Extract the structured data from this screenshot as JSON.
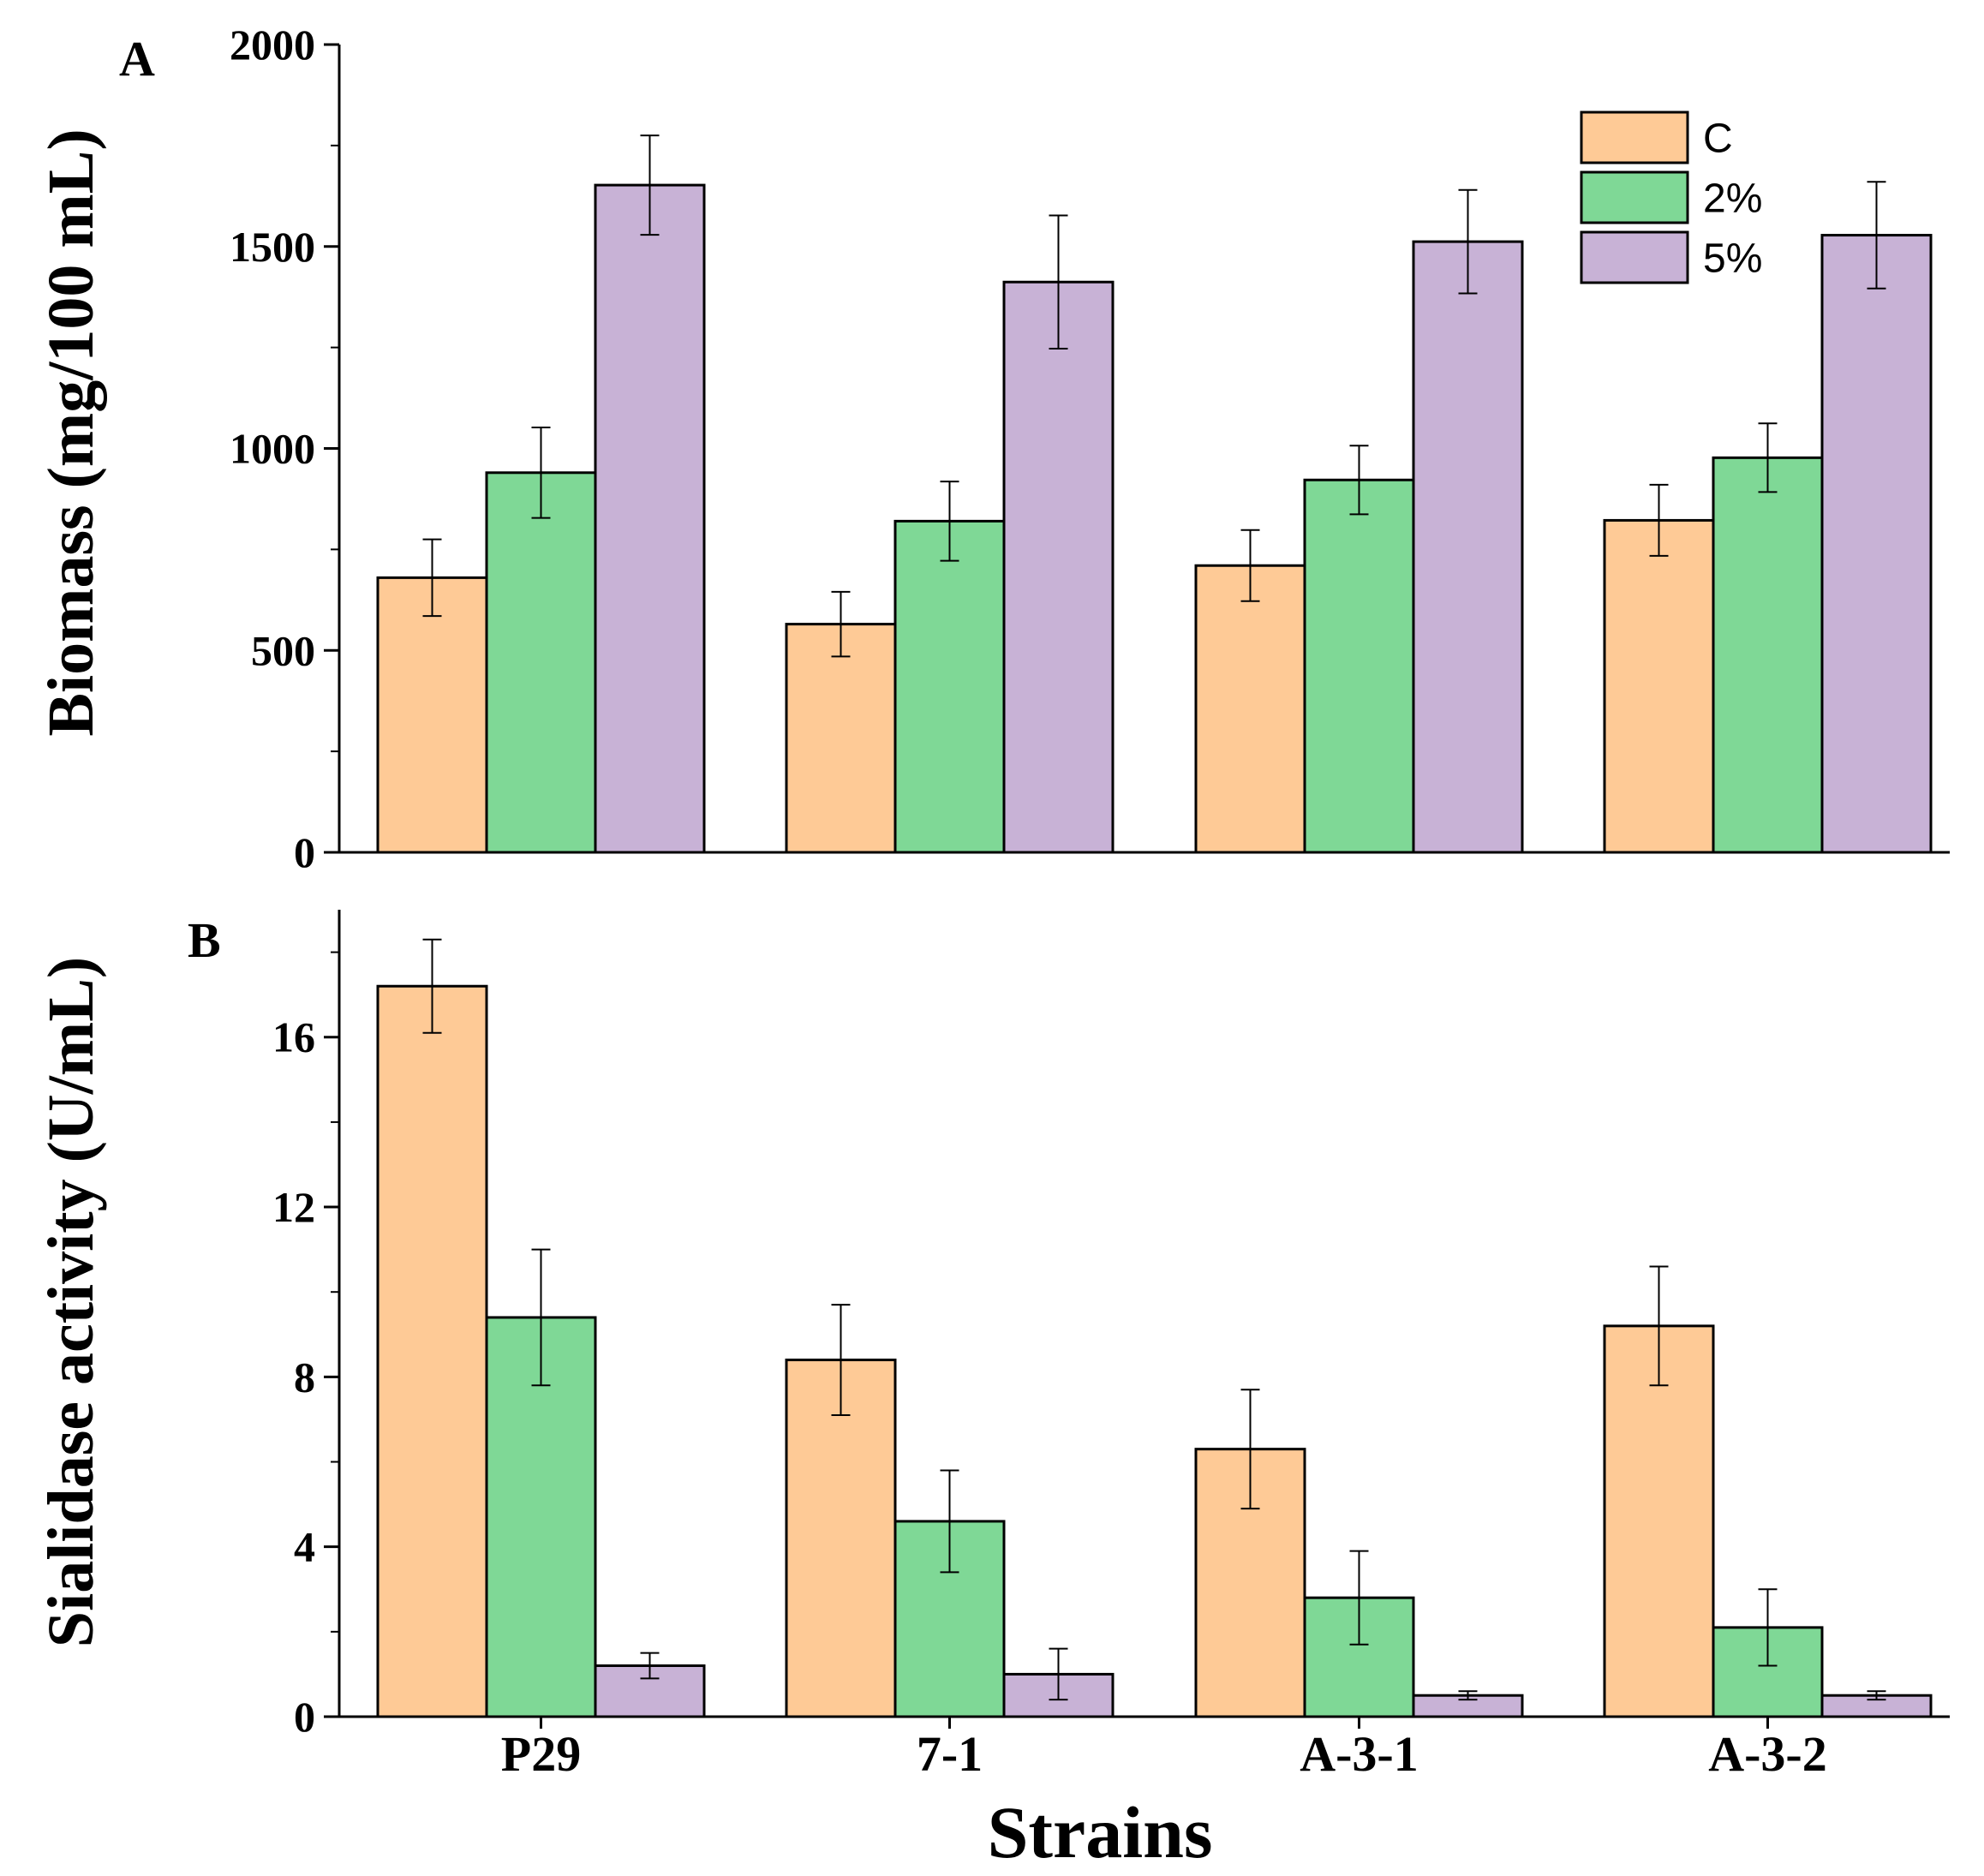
{
  "chart_data": [
    {
      "panel": "A",
      "type": "bar",
      "categories": [
        "P29",
        "7-1",
        "A-3-1",
        "A-3-2"
      ],
      "series": [
        {
          "name": "C",
          "color": "#FECA96",
          "values": [
            680,
            565,
            710,
            822
          ],
          "errors": [
            95,
            80,
            88,
            88
          ]
        },
        {
          "name": "2%",
          "color": "#7FD896",
          "values": [
            940,
            820,
            922,
            977
          ],
          "errors": [
            112,
            98,
            85,
            85
          ]
        },
        {
          "name": "5%",
          "color": "#C8B2D6",
          "values": [
            1652,
            1412,
            1512,
            1528
          ],
          "errors": [
            123,
            165,
            128,
            132
          ]
        }
      ],
      "ylabel": "Biomass (mg/100 mL)",
      "ylim": [
        0,
        2000
      ],
      "yticks": [
        "0",
        "500",
        "1000",
        "1500",
        "2000"
      ],
      "ytick_values": [
        0,
        500,
        1000,
        1500,
        2000
      ],
      "legend_position": "top-right"
    },
    {
      "panel": "B",
      "type": "bar",
      "categories": [
        "P29",
        "7-1",
        "A-3-1",
        "A-3-2"
      ],
      "series": [
        {
          "name": "C",
          "color": "#FECA96",
          "values": [
            17.2,
            8.4,
            6.3,
            9.2
          ],
          "errors": [
            1.1,
            1.3,
            1.4,
            1.4
          ]
        },
        {
          "name": "2%",
          "color": "#7FD896",
          "values": [
            9.4,
            4.6,
            2.8,
            2.1
          ],
          "errors": [
            1.6,
            1.2,
            1.1,
            0.9
          ]
        },
        {
          "name": "5%",
          "color": "#C8B2D6",
          "values": [
            1.2,
            1.0,
            0.5,
            0.5
          ],
          "errors": [
            0.3,
            0.6,
            0.1,
            0.1
          ]
        }
      ],
      "ylabel": "Sialidase activity (U/mL)",
      "ylim": [
        0,
        19
      ],
      "yticks": [
        "0",
        "4",
        "8",
        "12",
        "16"
      ],
      "ytick_values": [
        0,
        4,
        8,
        12,
        16
      ],
      "xlabel": "Strains"
    }
  ]
}
